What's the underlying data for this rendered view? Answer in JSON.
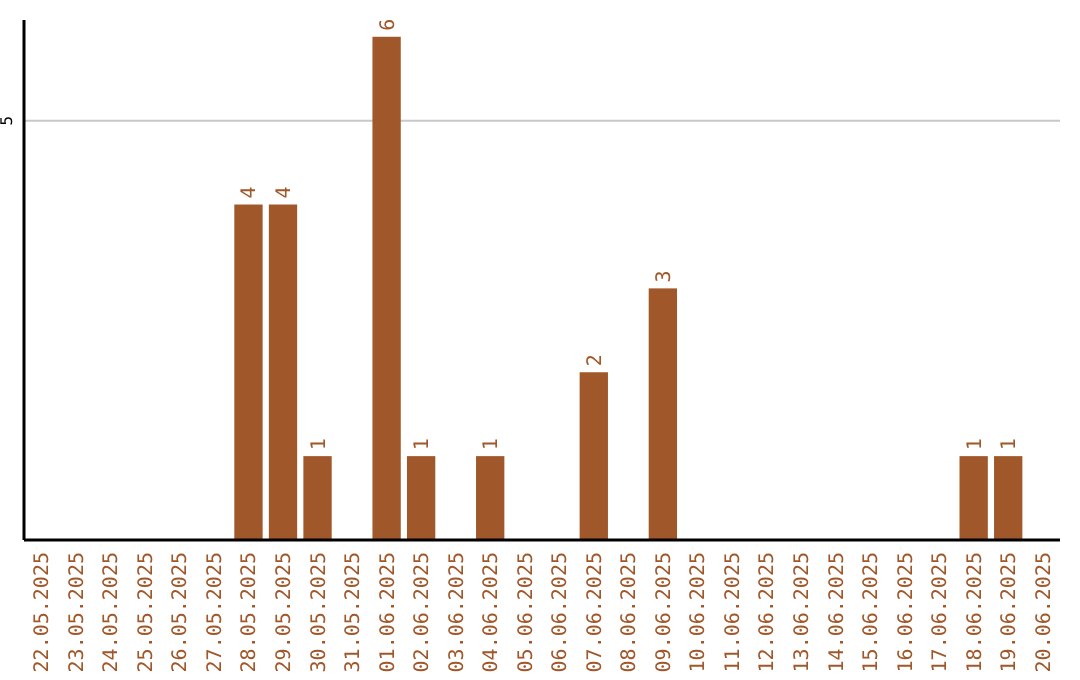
{
  "chart_data": {
    "type": "bar",
    "categories": [
      "22.05.2025",
      "23.05.2025",
      "24.05.2025",
      "25.05.2025",
      "26.05.2025",
      "27.05.2025",
      "28.05.2025",
      "29.05.2025",
      "30.05.2025",
      "31.05.2025",
      "01.06.2025",
      "02.06.2025",
      "03.06.2025",
      "04.06.2025",
      "05.06.2025",
      "06.06.2025",
      "07.06.2025",
      "08.06.2025",
      "09.06.2025",
      "10.06.2025",
      "11.06.2025",
      "12.06.2025",
      "13.06.2025",
      "14.06.2025",
      "15.06.2025",
      "16.06.2025",
      "17.06.2025",
      "18.06.2025",
      "19.06.2025",
      "20.06.2025"
    ],
    "values": [
      0,
      0,
      0,
      0,
      0,
      0,
      4,
      4,
      1,
      0,
      6,
      1,
      0,
      1,
      0,
      0,
      2,
      0,
      3,
      0,
      0,
      0,
      0,
      0,
      0,
      0,
      0,
      1,
      1,
      0
    ],
    "value_labels": [
      null,
      null,
      null,
      null,
      null,
      null,
      "4",
      "4",
      "1",
      null,
      "6",
      "1",
      null,
      "1",
      null,
      null,
      "2",
      null,
      "3",
      null,
      null,
      null,
      null,
      null,
      null,
      null,
      null,
      "1",
      "1",
      null
    ],
    "color": "#a0572a",
    "ylim": [
      0,
      6.2
    ],
    "yticks": [
      5
    ],
    "grid": "y"
  }
}
